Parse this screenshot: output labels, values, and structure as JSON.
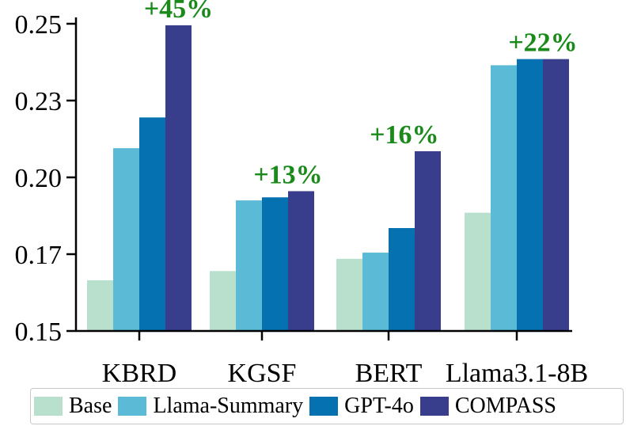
{
  "chart_data": {
    "type": "bar",
    "categories": [
      "KBRD",
      "KGSF",
      "BERT",
      "Llama3.1-8B"
    ],
    "series": [
      {
        "name": "Base",
        "color": "#b8e0cc",
        "values": [
          0.1665,
          0.1695,
          0.1735,
          0.1885
        ]
      },
      {
        "name": "Llama-Summary",
        "color": "#5bbad5",
        "values": [
          0.2095,
          0.1925,
          0.1755,
          0.2365
        ]
      },
      {
        "name": "GPT-4o",
        "color": "#0571b0",
        "values": [
          0.2195,
          0.1935,
          0.1835,
          0.2385
        ]
      },
      {
        "name": "COMPASS",
        "color": "#383d8c",
        "values": [
          0.2495,
          0.1955,
          0.2085,
          0.2385
        ]
      }
    ],
    "annotations": [
      "+45%",
      "+13%",
      "+16%",
      "+22%"
    ],
    "yticks": [
      "0.15",
      "0.17",
      "0.20",
      "0.23",
      "0.25"
    ],
    "ytick_values": [
      0.15,
      0.175,
      0.2,
      0.225,
      0.25
    ],
    "ylim": [
      0.15,
      0.25
    ],
    "xlabel": "",
    "ylabel": "",
    "title": "",
    "grid": false,
    "legend_position": "bottom"
  }
}
